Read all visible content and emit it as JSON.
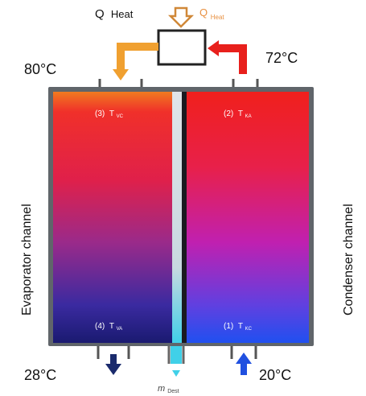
{
  "heat": {
    "q_label": "Q",
    "heat_label": "Heat",
    "q_heat_sub_main": "Q",
    "q_heat_sub": "Heat"
  },
  "temps": {
    "top_left": "80°C",
    "top_right": "72°C",
    "bottom_left": "28°C",
    "bottom_right": "20°C"
  },
  "points": {
    "p3": {
      "num": "(3)",
      "t": "T",
      "sub": "VC"
    },
    "p2": {
      "num": "(2)",
      "t": "T",
      "sub": "KA"
    },
    "p4": {
      "num": "(4)",
      "t": "T",
      "sub": "VA"
    },
    "p1": {
      "num": "(1)",
      "t": "T",
      "sub": "KC"
    }
  },
  "channels": {
    "left": "Evaporator channel",
    "right": "Condenser channel"
  },
  "distillate": {
    "m": "m",
    "sub": "Dest"
  },
  "colors": {
    "orange": "#f0a030",
    "red": "#e8201c",
    "navy": "#1a2a6c",
    "blue": "#2050e0",
    "cyan": "#40d0e8"
  }
}
